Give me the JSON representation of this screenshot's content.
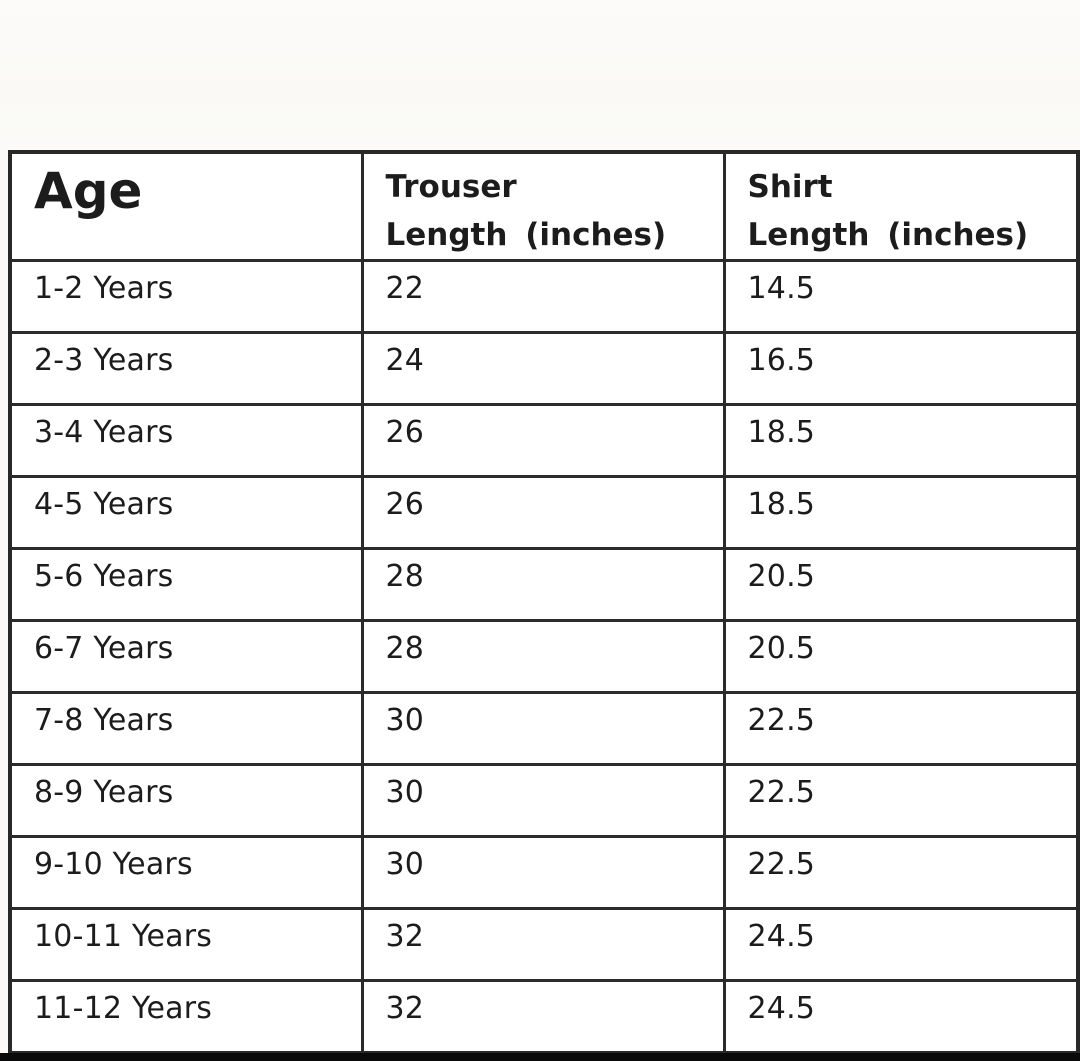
{
  "page": {
    "background_color": "#fbfaf8",
    "table_border_color": "#2d2d2d",
    "text_color": "#1f1f1f",
    "bottom_bar_color": "#0a0a0a"
  },
  "table": {
    "headers": {
      "age": "Age",
      "trouser_line1": "Trouser",
      "trouser_line2": "Length (inches)",
      "shirt_line1": "Shirt",
      "shirt_line2": "Length (inches)"
    },
    "rows": [
      {
        "age": "1-2 Years",
        "trouser": "22",
        "shirt": "14.5"
      },
      {
        "age": "2-3 Years",
        "trouser": "24",
        "shirt": "16.5"
      },
      {
        "age": "3-4 Years",
        "trouser": "26",
        "shirt": "18.5"
      },
      {
        "age": "4-5 Years",
        "trouser": "26",
        "shirt": "18.5"
      },
      {
        "age": "5-6 Years",
        "trouser": "28",
        "shirt": "20.5"
      },
      {
        "age": "6-7 Years",
        "trouser": "28",
        "shirt": "20.5"
      },
      {
        "age": "7-8 Years",
        "trouser": "30",
        "shirt": "22.5"
      },
      {
        "age": "8-9 Years",
        "trouser": "30",
        "shirt": "22.5"
      },
      {
        "age": "9-10 Years",
        "trouser": "30",
        "shirt": "22.5"
      },
      {
        "age": "10-11 Years",
        "trouser": "32",
        "shirt": "24.5"
      },
      {
        "age": "11-12 Years",
        "trouser": "32",
        "shirt": "24.5"
      }
    ]
  },
  "chart_data": {
    "type": "table",
    "columns": [
      "Age",
      "Trouser Length (inches)",
      "Shirt Length (inches)"
    ],
    "rows": [
      [
        "1-2 Years",
        22,
        14.5
      ],
      [
        "2-3 Years",
        24,
        16.5
      ],
      [
        "3-4 Years",
        26,
        18.5
      ],
      [
        "4-5 Years",
        26,
        18.5
      ],
      [
        "5-6 Years",
        28,
        20.5
      ],
      [
        "6-7 Years",
        28,
        20.5
      ],
      [
        "7-8 Years",
        30,
        22.5
      ],
      [
        "8-9 Years",
        30,
        22.5
      ],
      [
        "9-10 Years",
        30,
        22.5
      ],
      [
        "10-11 Years",
        32,
        24.5
      ],
      [
        "11-12 Years",
        32,
        24.5
      ]
    ]
  }
}
